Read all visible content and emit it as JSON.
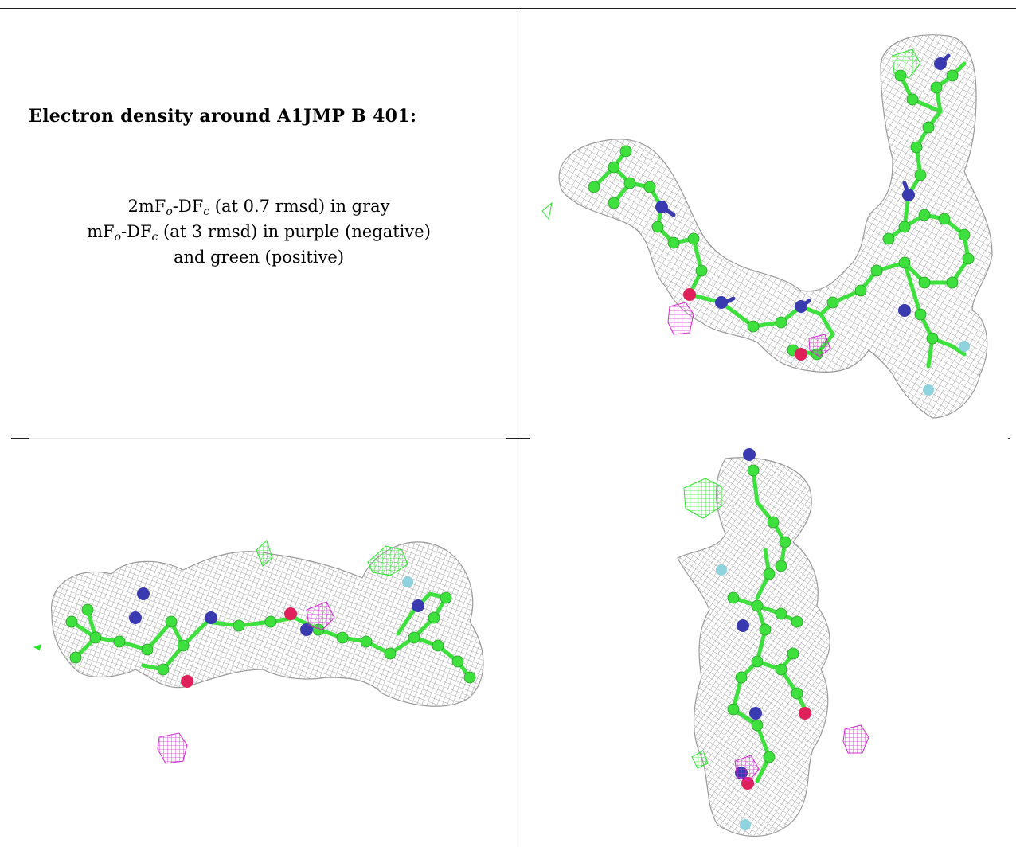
{
  "figure": {
    "title": "Electron density around A1JMP B 401:",
    "legend": [
      {
        "prefix": "2mF",
        "sub1": "o",
        "mid": "-DF",
        "sub2": "c",
        "text": " (at 0.7 rmsd) in gray"
      },
      {
        "prefix": "mF",
        "sub1": "o",
        "mid": "-DF",
        "sub2": "c",
        "text": " (at 3 rmsd) in purple (negative)"
      },
      {
        "text": "and green (positive)"
      }
    ]
  },
  "colors": {
    "mesh_2fofc": "#8e8e8e",
    "mesh_negative": "#d12ad1",
    "mesh_positive": "#27e627",
    "carbon": "#3ee03e",
    "nitrogen": "#3a3ab0",
    "oxygen": "#e0205a",
    "fluorine": "#8fd3df"
  },
  "panels": [
    {
      "name": "view-top-right"
    },
    {
      "name": "view-bottom-left"
    },
    {
      "name": "view-bottom-right"
    }
  ]
}
